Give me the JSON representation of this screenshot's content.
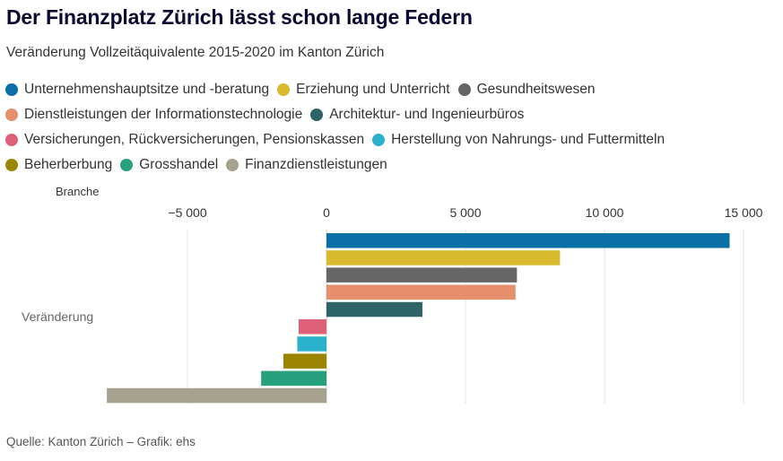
{
  "header": {
    "title": "Der Finanzplatz Zürich lässt schon lange Federn",
    "subtitle": "Veränderung Vollzeitäquivalente 2015-2020 im Kanton Zürich"
  },
  "footer": {
    "source": "Quelle: Kanton Zürich – Grafik: ehs"
  },
  "chart_data": {
    "type": "bar",
    "orientation": "horizontal",
    "title": "Der Finanzplatz Zürich lässt schon lange Federn",
    "subtitle": "Veränderung Vollzeitäquivalente 2015-2020 im Kanton Zürich",
    "axis_title": "Branche",
    "category": "Veränderung",
    "xlim": [
      -8000,
      15500
    ],
    "xticks": [
      -5000,
      0,
      5000,
      10000,
      15000
    ],
    "xtick_labels": [
      "−5 000",
      "0",
      "5 000",
      "10 000",
      "15 000"
    ],
    "grid": true,
    "legend_position": "top",
    "series": [
      {
        "name": "Unternehmenshauptsitze und -beratung",
        "value": 14500,
        "color": "#0a6fa6"
      },
      {
        "name": "Erziehung und Unterricht",
        "value": 8400,
        "color": "#d9b92e"
      },
      {
        "name": "Gesundheitswesen",
        "value": 6850,
        "color": "#666666"
      },
      {
        "name": "Dienstleistungen der Informationstechnologie",
        "value": 6800,
        "color": "#e58f6c"
      },
      {
        "name": "Architektur- und Ingenieurbüros",
        "value": 3450,
        "color": "#2c6468"
      },
      {
        "name": "Versicherungen, Rückversicherungen, Pensionskassen",
        "value": -1000,
        "color": "#de6078"
      },
      {
        "name": "Herstellung von Nahrungs- und Futtermitteln",
        "value": -1050,
        "color": "#2ab2cc"
      },
      {
        "name": "Beherberbung",
        "value": -1550,
        "color": "#9b8500"
      },
      {
        "name": "Grosshandel",
        "value": -2350,
        "color": "#27a07d"
      },
      {
        "name": "Finanzdienstleistungen",
        "value": -7900,
        "color": "#a6a28e"
      }
    ]
  }
}
